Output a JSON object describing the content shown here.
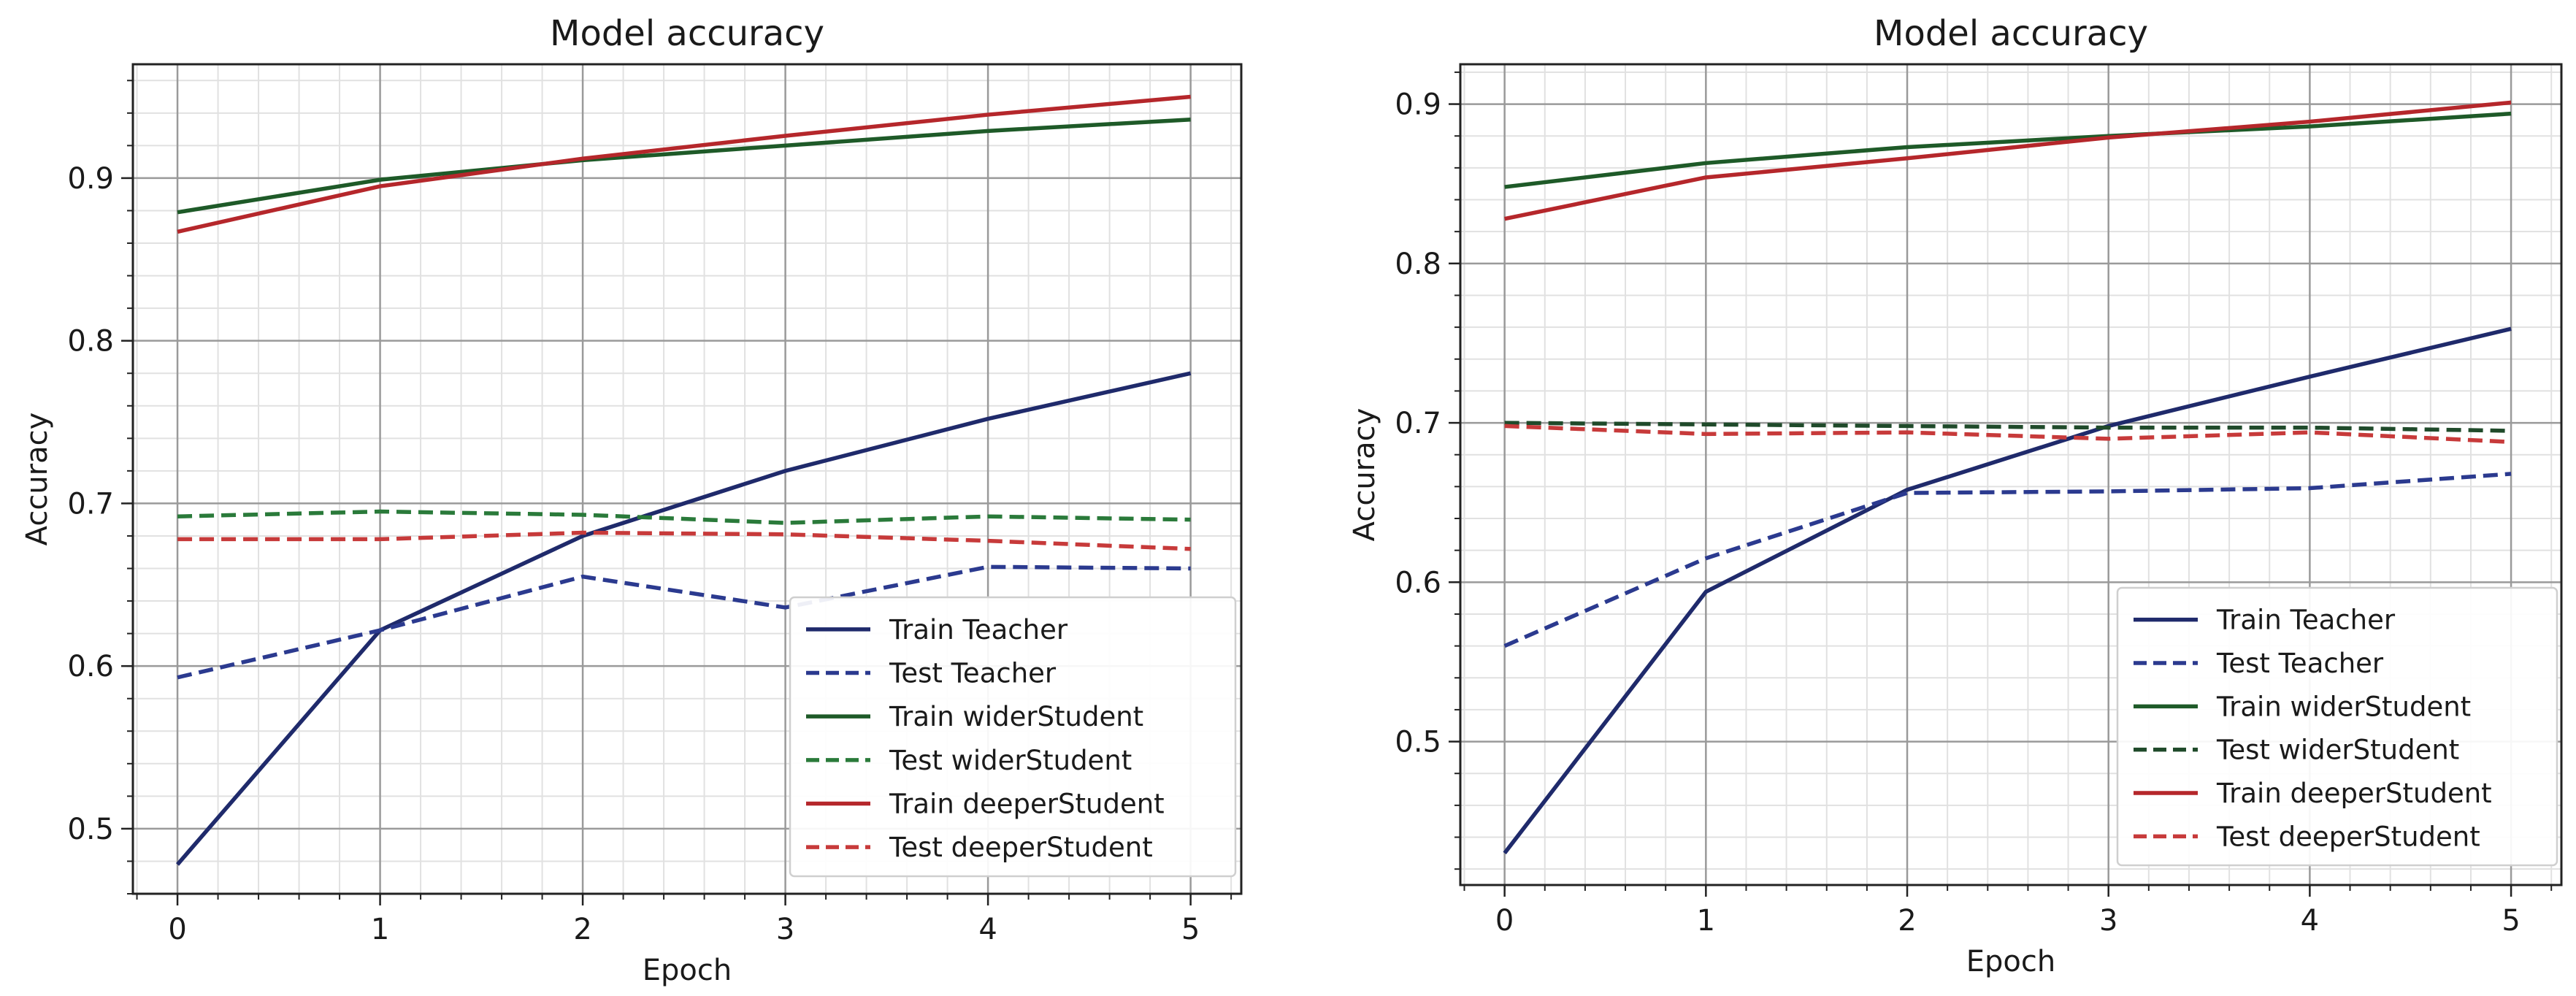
{
  "chart_data": [
    {
      "type": "line",
      "title": "Model accuracy",
      "xlabel": "Epoch",
      "ylabel": "Accuracy",
      "xlim": [
        -0.22,
        5.25
      ],
      "ylim": [
        0.46,
        0.97
      ],
      "xticks": [
        0,
        1,
        2,
        3,
        4,
        5
      ],
      "yticks": [
        0.5,
        0.6,
        0.7,
        0.8,
        0.9
      ],
      "grid": true,
      "minor_grid": true,
      "legend": "bottom-right",
      "x": [
        0,
        1,
        2,
        3,
        4,
        5
      ],
      "series": [
        {
          "name": "Train Teacher",
          "color": "#1f2a6b",
          "style": "solid",
          "values": [
            0.478,
            0.622,
            0.68,
            0.72,
            0.752,
            0.78
          ]
        },
        {
          "name": "Test Teacher",
          "color": "#2b3a8f",
          "style": "dashed",
          "values": [
            0.593,
            0.622,
            0.655,
            0.636,
            0.661,
            0.66
          ]
        },
        {
          "name": "Train widerStudent",
          "color": "#1e5a28",
          "style": "solid",
          "values": [
            0.879,
            0.899,
            0.911,
            0.92,
            0.929,
            0.936
          ]
        },
        {
          "name": "Test widerStudent",
          "color": "#2a7a3a",
          "style": "dashed",
          "values": [
            0.692,
            0.695,
            0.693,
            0.688,
            0.692,
            0.69
          ]
        },
        {
          "name": "Train deeperStudent",
          "color": "#b5272b",
          "style": "solid",
          "values": [
            0.867,
            0.895,
            0.912,
            0.926,
            0.939,
            0.95
          ]
        },
        {
          "name": "Test deeperStudent",
          "color": "#c73a3a",
          "style": "dashed",
          "values": [
            0.678,
            0.678,
            0.682,
            0.681,
            0.677,
            0.672
          ]
        }
      ]
    },
    {
      "type": "line",
      "title": "Model accuracy",
      "xlabel": "Epoch",
      "ylabel": "Accuracy",
      "xlim": [
        -0.22,
        5.25
      ],
      "ylim": [
        0.41,
        0.925
      ],
      "xticks": [
        0,
        1,
        2,
        3,
        4,
        5
      ],
      "yticks": [
        0.5,
        0.6,
        0.7,
        0.8,
        0.9
      ],
      "grid": true,
      "minor_grid": true,
      "legend": "bottom-right",
      "x": [
        0,
        1,
        2,
        3,
        4,
        5
      ],
      "series": [
        {
          "name": "Train Teacher",
          "color": "#1f2a6b",
          "style": "solid",
          "values": [
            0.43,
            0.594,
            0.658,
            0.698,
            0.729,
            0.759
          ]
        },
        {
          "name": "Test Teacher",
          "color": "#2b3a8f",
          "style": "dashed",
          "values": [
            0.56,
            0.615,
            0.656,
            0.657,
            0.659,
            0.668
          ]
        },
        {
          "name": "Train widerStudent",
          "color": "#1e5a28",
          "style": "solid",
          "values": [
            0.848,
            0.863,
            0.873,
            0.88,
            0.886,
            0.894
          ]
        },
        {
          "name": "Test widerStudent",
          "color": "#1f4a2a",
          "style": "dashed",
          "values": [
            0.7,
            0.699,
            0.698,
            0.697,
            0.697,
            0.695
          ]
        },
        {
          "name": "Train deeperStudent",
          "color": "#b5272b",
          "style": "solid",
          "values": [
            0.828,
            0.854,
            0.866,
            0.879,
            0.889,
            0.901
          ]
        },
        {
          "name": "Test deeperStudent",
          "color": "#c73a3a",
          "style": "dashed",
          "values": [
            0.698,
            0.693,
            0.694,
            0.69,
            0.694,
            0.688
          ]
        }
      ]
    }
  ]
}
